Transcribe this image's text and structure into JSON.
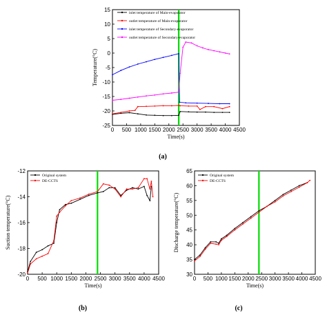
{
  "chart_data": [
    {
      "panel": "(a)",
      "type": "line",
      "xlabel": "Time(s)",
      "ylabel": "Temperature(°C)",
      "xlim": [
        0,
        4500
      ],
      "ylim": [
        -25,
        15
      ],
      "xticks": [
        0,
        500,
        1000,
        1500,
        2000,
        2500,
        3000,
        3500,
        4000,
        4500
      ],
      "yticks": [
        -25,
        -20,
        -15,
        -10,
        -5,
        0,
        5,
        10,
        15
      ],
      "legend_position": "top-right",
      "vline_x": 2350,
      "vline_color": "#00dd00",
      "series": [
        {
          "name": "inlet temperature of Main-evaporator",
          "color": "#000000",
          "x": [
            0,
            300,
            600,
            900,
            1200,
            1500,
            1800,
            2100,
            2350,
            2400,
            2700,
            3000,
            3300,
            3600,
            3900,
            4150
          ],
          "y": [
            -21.2,
            -20.8,
            -20.6,
            -21.0,
            -21.4,
            -21.5,
            -21.6,
            -21.6,
            -21.5,
            -20.2,
            -20.3,
            -20.4,
            -20.4,
            -20.5,
            -20.5,
            -20.5
          ]
        },
        {
          "name": "outlet temperature of Main-evaporator",
          "color": "#ff0000",
          "x": [
            0,
            300,
            600,
            800,
            900,
            1200,
            1500,
            1800,
            2100,
            2350,
            2400,
            2700,
            3000,
            3100,
            3300,
            3600,
            3900,
            4150
          ],
          "y": [
            -21.0,
            -20.5,
            -20.0,
            -19.8,
            -18.5,
            -18.4,
            -18.3,
            -18.2,
            -18.2,
            -18.1,
            -18.2,
            -18.3,
            -18.3,
            -19.5,
            -18.5,
            -18.5,
            -19.2,
            -18.5
          ]
        },
        {
          "name": "inlet temperature of Secondary-evaporator",
          "color": "#0000ff",
          "x": [
            0,
            300,
            600,
            900,
            1200,
            1500,
            1800,
            2100,
            2350,
            2380,
            2600,
            3000,
            3400,
            3800,
            4150
          ],
          "y": [
            -7.5,
            -6.0,
            -4.8,
            -3.8,
            -3.0,
            -2.2,
            -1.5,
            -0.8,
            -0.2,
            -17.0,
            -17.2,
            -17.3,
            -17.4,
            -17.5,
            -17.5
          ]
        },
        {
          "name": "outlet temperature of Secondary-evaporator",
          "color": "#ff00ff",
          "x": [
            0,
            300,
            600,
            900,
            1200,
            1500,
            1800,
            2100,
            2350,
            2400,
            2500,
            2600,
            2800,
            3000,
            3200,
            3400,
            3600,
            3800,
            4000,
            4150
          ],
          "y": [
            -16.3,
            -16.0,
            -15.6,
            -15.2,
            -14.8,
            -14.5,
            -14.1,
            -13.8,
            -13.5,
            -7.0,
            2.0,
            3.8,
            3.5,
            2.5,
            1.8,
            1.2,
            0.8,
            0.4,
            0.0,
            -0.3
          ]
        }
      ]
    },
    {
      "panel": "(b)",
      "type": "line",
      "xlabel": "Time(s)",
      "ylabel": "Suction temperature(°C)",
      "xlim": [
        0,
        4500
      ],
      "ylim": [
        -20,
        -12
      ],
      "xticks": [
        0,
        500,
        1000,
        1500,
        2000,
        2500,
        3000,
        3500,
        4000,
        4500
      ],
      "yticks": [
        -20,
        -18,
        -16,
        -14,
        -12
      ],
      "legend_position": "top-left",
      "vline_x": 2400,
      "vline_color": "#00dd00",
      "series": [
        {
          "name": "Original system",
          "color": "#000000",
          "x": [
            0,
            100,
            300,
            500,
            700,
            900,
            1000,
            1100,
            1300,
            1500,
            1800,
            2100,
            2400,
            2600,
            2800,
            3000,
            3200,
            3400,
            3600,
            3800,
            4000,
            4100,
            4200,
            4250
          ],
          "y": [
            -19.8,
            -19.0,
            -18.3,
            -18.1,
            -17.8,
            -17.6,
            -16.0,
            -15.0,
            -14.6,
            -14.5,
            -14.2,
            -13.9,
            -13.7,
            -13.6,
            -13.3,
            -13.3,
            -13.9,
            -13.5,
            -13.3,
            -13.4,
            -13.2,
            -13.9,
            -14.3,
            -13.2
          ]
        },
        {
          "name": "DE-CCTS",
          "color": "#ff0000",
          "x": [
            0,
            100,
            300,
            500,
            700,
            900,
            1000,
            1100,
            1300,
            1500,
            1800,
            2100,
            2400,
            2600,
            2800,
            3000,
            3200,
            3400,
            3600,
            3800,
            4000,
            4100,
            4200,
            4250,
            4300
          ],
          "y": [
            -19.9,
            -19.2,
            -18.8,
            -18.6,
            -18.4,
            -17.4,
            -15.5,
            -15.2,
            -14.7,
            -14.3,
            -14.1,
            -13.8,
            -13.6,
            -13.0,
            -13.1,
            -13.4,
            -14.0,
            -13.4,
            -13.4,
            -13.3,
            -12.6,
            -12.6,
            -13.4,
            -12.8,
            -14.0
          ]
        }
      ]
    },
    {
      "panel": "(c)",
      "type": "line",
      "xlabel": "Time(s)",
      "ylabel": "Discharge temperature(°C)",
      "xlim": [
        0,
        4500
      ],
      "ylim": [
        30,
        65
      ],
      "xticks": [
        0,
        500,
        1000,
        1500,
        2000,
        2500,
        3000,
        3500,
        4000,
        4500
      ],
      "yticks": [
        30,
        35,
        40,
        45,
        50,
        55,
        60,
        65
      ],
      "legend_position": "top-left",
      "vline_x": 2400,
      "vline_color": "#00dd00",
      "series": [
        {
          "name": "Original system",
          "color": "#000000",
          "x": [
            0,
            200,
            400,
            600,
            800,
            900,
            1000,
            1200,
            1500,
            1800,
            2100,
            2400,
            2700,
            3000,
            3300,
            3600,
            3900,
            4200
          ],
          "y": [
            35.0,
            36.5,
            39.0,
            41.0,
            41.0,
            40.5,
            42.0,
            43.2,
            45.5,
            47.5,
            49.5,
            51.5,
            53.0,
            55.0,
            57.0,
            58.5,
            60.0,
            61.0
          ]
        },
        {
          "name": "DE-CCTS",
          "color": "#ff0000",
          "x": [
            0,
            200,
            400,
            600,
            800,
            900,
            1000,
            1200,
            1500,
            1800,
            2100,
            2400,
            2700,
            3000,
            3300,
            3600,
            3900,
            4200,
            4300
          ],
          "y": [
            34.5,
            36.0,
            38.5,
            40.5,
            40.2,
            40.0,
            41.5,
            42.8,
            45.0,
            47.0,
            49.0,
            51.0,
            53.0,
            54.5,
            56.5,
            58.0,
            59.5,
            61.0,
            61.8
          ]
        }
      ]
    }
  ],
  "panel_labels": [
    "(a)",
    "(b)",
    "(c)"
  ]
}
